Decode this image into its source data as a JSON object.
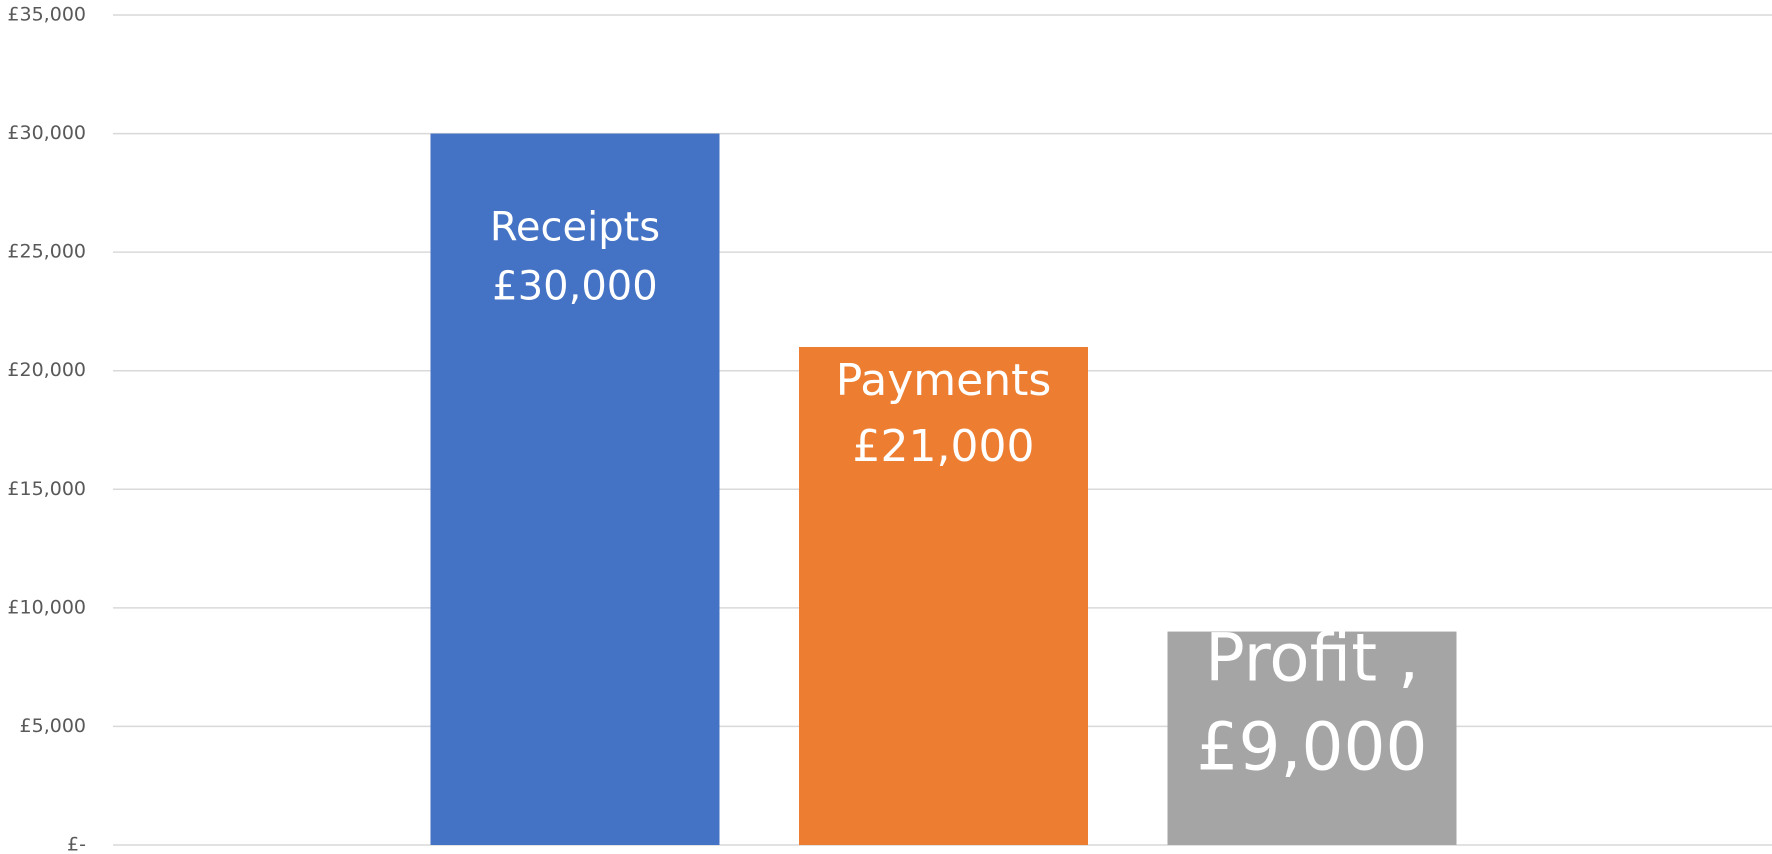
{
  "chart_data": {
    "type": "bar",
    "categories": [
      "Receipts",
      "Payments",
      "Profit ,"
    ],
    "values": [
      30000,
      21000,
      9000
    ],
    "value_labels": [
      "£30,000",
      "£21,000",
      "£9,000"
    ],
    "colors": [
      "#4472c4",
      "#ed7d31",
      "#a5a5a5"
    ],
    "ylim": [
      0,
      35000
    ],
    "yticks": [
      {
        "value": 0,
        "label": "£-"
      },
      {
        "value": 5000,
        "label": "£5,000"
      },
      {
        "value": 10000,
        "label": "£10,000"
      },
      {
        "value": 15000,
        "label": "£15,000"
      },
      {
        "value": 20000,
        "label": "£20,000"
      },
      {
        "value": 25000,
        "label": "£25,000"
      },
      {
        "value": 30000,
        "label": "£30,000"
      },
      {
        "value": 35000,
        "label": "£35,000"
      }
    ],
    "grid": true
  }
}
